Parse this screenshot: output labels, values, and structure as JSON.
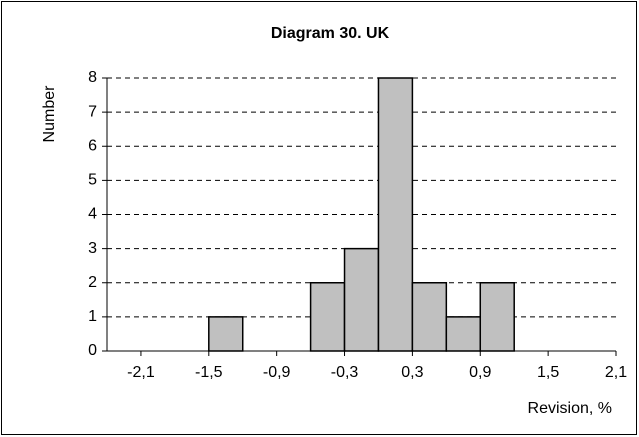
{
  "chart_data": {
    "type": "histogram",
    "title": "Diagram 30. UK",
    "x_label": "Revision, %",
    "y_label": "Number",
    "bins": [
      -2.4,
      -2.1,
      -1.8,
      -1.5,
      -1.2,
      -0.9,
      -0.6,
      -0.3,
      0,
      0.3,
      0.6,
      0.9,
      1.2,
      1.5,
      1.8,
      2.1
    ],
    "values": [
      0,
      0,
      0,
      1,
      0,
      0,
      2,
      3,
      8,
      2,
      1,
      2,
      0,
      0,
      0
    ],
    "color": "#c0c0c0",
    "xlim": [
      -2.4,
      2.1
    ],
    "xticks": [
      {
        "value": -2.1,
        "label": "-2,1"
      },
      {
        "value": -1.5,
        "label": "-1,5"
      },
      {
        "value": -0.9,
        "label": "-0,9"
      },
      {
        "value": -0.3,
        "label": "-0,3"
      },
      {
        "value": 0.3,
        "label": "0,3"
      },
      {
        "value": 0.9,
        "label": "0,9"
      },
      {
        "value": 1.5,
        "label": "1,5"
      },
      {
        "value": 2.1,
        "label": "2,1"
      }
    ],
    "ylim": [
      0,
      8
    ],
    "yticks": [
      0,
      1,
      2,
      3,
      4,
      5,
      6,
      7,
      8
    ],
    "grid": true
  }
}
